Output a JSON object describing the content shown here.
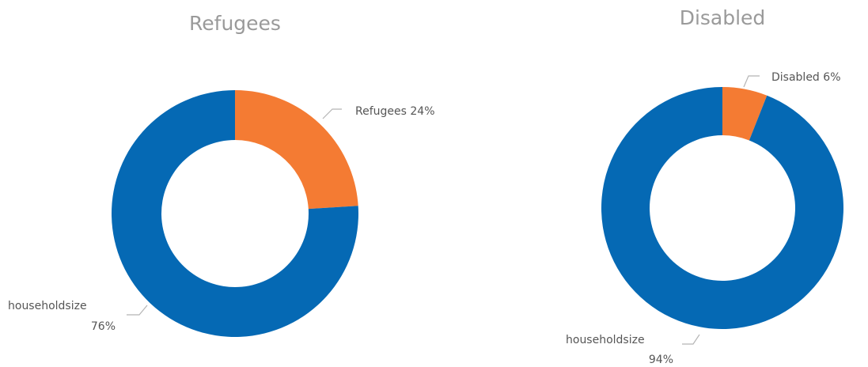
{
  "colors": {
    "series_a": "#f47b33",
    "series_b": "#0569b4"
  },
  "chart_data": [
    {
      "type": "pie",
      "variant": "donut",
      "title": "Refugees",
      "slices": [
        {
          "label": "Refugees",
          "pct_text": "24%",
          "value": 24,
          "color": "#f47b33"
        },
        {
          "label": "householdsize",
          "pct_text": "76%",
          "value": 76,
          "color": "#0569b4"
        }
      ]
    },
    {
      "type": "pie",
      "variant": "donut",
      "title": "Disabled",
      "slices": [
        {
          "label": "Disabled",
          "pct_text": "6%",
          "value": 6,
          "color": "#f47b33"
        },
        {
          "label": "householdsize",
          "pct_text": "94%",
          "value": 94,
          "color": "#0569b4"
        }
      ]
    }
  ]
}
